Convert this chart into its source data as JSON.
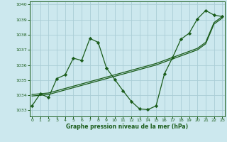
{
  "title": "Graphe pression niveau de la mer (hPa)",
  "bg_color": "#cce8ee",
  "grid_color": "#aacdd6",
  "line_color": "#1a5c1a",
  "x_ticks": [
    0,
    1,
    2,
    3,
    4,
    5,
    6,
    7,
    8,
    9,
    10,
    11,
    12,
    13,
    14,
    15,
    16,
    17,
    18,
    19,
    20,
    21,
    22,
    23
  ],
  "y_ticks": [
    1033,
    1034,
    1035,
    1036,
    1037,
    1038,
    1039,
    1040
  ],
  "ylim": [
    1032.6,
    1040.2
  ],
  "xlim": [
    -0.3,
    23.3
  ],
  "main_series": [
    1033.3,
    1034.1,
    1033.85,
    1035.1,
    1035.35,
    1036.45,
    1036.3,
    1037.75,
    1037.5,
    1035.8,
    1035.05,
    1034.3,
    1033.6,
    1033.1,
    1033.05,
    1033.3,
    1035.4,
    1036.5,
    1037.7,
    1038.1,
    1039.05,
    1039.6,
    1039.3,
    1039.2
  ],
  "trend_series1": [
    1034.05,
    1034.1,
    1034.15,
    1034.3,
    1034.45,
    1034.6,
    1034.75,
    1034.9,
    1035.05,
    1035.2,
    1035.35,
    1035.5,
    1035.65,
    1035.8,
    1035.95,
    1036.1,
    1036.3,
    1036.5,
    1036.7,
    1036.9,
    1037.1,
    1037.5,
    1038.8,
    1039.2
  ],
  "trend_series2": [
    1033.95,
    1034.0,
    1034.05,
    1034.2,
    1034.35,
    1034.5,
    1034.65,
    1034.8,
    1034.95,
    1035.1,
    1035.25,
    1035.4,
    1035.55,
    1035.7,
    1035.85,
    1036.0,
    1036.2,
    1036.4,
    1036.6,
    1036.8,
    1037.0,
    1037.4,
    1038.7,
    1039.1
  ]
}
